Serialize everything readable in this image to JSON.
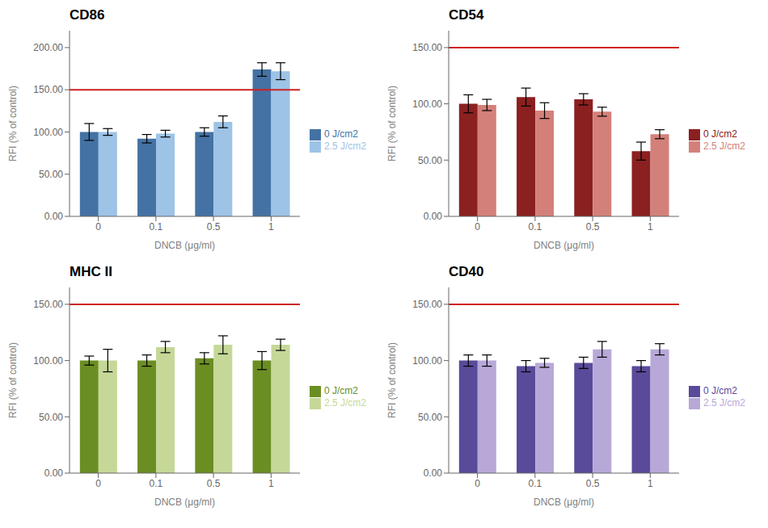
{
  "chart_data": [
    {
      "type": "bar",
      "title": "CD86",
      "xlabel": "DNCB (μg/ml)",
      "ylabel": "RFI (% of control)",
      "categories": [
        "0",
        "0.1",
        "0.5",
        "1"
      ],
      "series": [
        {
          "name": "0 J/cm2",
          "color": "#4472a4",
          "values": [
            100,
            92,
            100,
            174
          ],
          "errors": [
            10,
            5,
            5,
            8
          ]
        },
        {
          "name": "2.5 J/cm2",
          "color": "#9dc3e6",
          "values": [
            100,
            98,
            112,
            172
          ],
          "errors": [
            4,
            4,
            7,
            10
          ]
        }
      ],
      "ylim": [
        0,
        220
      ],
      "yticks": [
        {
          "value": 0,
          "label": "0.00"
        },
        {
          "value": 50,
          "label": "50.00"
        },
        {
          "value": 100,
          "label": "100.00"
        },
        {
          "value": 150,
          "label": "150.00"
        },
        {
          "value": 200,
          "label": "200.00"
        }
      ],
      "reference_lines": [
        {
          "value": 150,
          "color": "#cc2222"
        }
      ],
      "grid": false,
      "legend": "right"
    },
    {
      "type": "bar",
      "title": "CD54",
      "xlabel": "DNCB (μg/ml)",
      "ylabel": "RFI (% of control)",
      "categories": [
        "0",
        "0.1",
        "0.5",
        "1"
      ],
      "series": [
        {
          "name": "0 J/cm2",
          "color": "#8b2020",
          "values": [
            100,
            106,
            104,
            58
          ],
          "errors": [
            8,
            8,
            5,
            8
          ]
        },
        {
          "name": "2.5 J/cm2",
          "color": "#d4807a",
          "values": [
            99,
            94,
            93,
            73
          ],
          "errors": [
            5,
            7,
            4,
            4
          ]
        }
      ],
      "ylim": [
        0,
        165
      ],
      "yticks": [
        {
          "value": 0,
          "label": "0.00"
        },
        {
          "value": 50,
          "label": "50.00"
        },
        {
          "value": 100,
          "label": "100.00"
        },
        {
          "value": 150,
          "label": "150.00"
        }
      ],
      "reference_lines": [
        {
          "value": 150,
          "color": "#cc2222"
        }
      ],
      "grid": false,
      "legend": "right"
    },
    {
      "type": "bar",
      "title": "MHC II",
      "xlabel": "DNCB (μg/ml)",
      "ylabel": "RFI (% of control)",
      "categories": [
        "0",
        "0.1",
        "0.5",
        "1"
      ],
      "series": [
        {
          "name": "0 J/cm2",
          "color": "#6b8e23",
          "values": [
            100,
            100,
            102,
            100
          ],
          "errors": [
            4,
            5,
            5,
            8
          ]
        },
        {
          "name": "2.5 J/cm2",
          "color": "#c5d898",
          "values": [
            100,
            112,
            114,
            114
          ],
          "errors": [
            10,
            5,
            8,
            5
          ]
        }
      ],
      "ylim": [
        0,
        165
      ],
      "yticks": [
        {
          "value": 0,
          "label": "0.00"
        },
        {
          "value": 50,
          "label": "50.00"
        },
        {
          "value": 100,
          "label": "100.00"
        },
        {
          "value": 150,
          "label": "150.00"
        }
      ],
      "reference_lines": [
        {
          "value": 150,
          "color": "#cc2222"
        }
      ],
      "grid": false,
      "legend": "right"
    },
    {
      "type": "bar",
      "title": "CD40",
      "xlabel": "DNCB (μg/ml)",
      "ylabel": "RFI (% of control)",
      "categories": [
        "0",
        "0.1",
        "0.5",
        "1"
      ],
      "series": [
        {
          "name": "0 J/cm2",
          "color": "#5a4a9a",
          "values": [
            100,
            95,
            98,
            95
          ],
          "errors": [
            5,
            5,
            5,
            5
          ]
        },
        {
          "name": "2.5 J/cm2",
          "color": "#b8a8d8",
          "values": [
            100,
            98,
            110,
            110
          ],
          "errors": [
            5,
            4,
            7,
            5
          ]
        }
      ],
      "ylim": [
        0,
        165
      ],
      "yticks": [
        {
          "value": 0,
          "label": "0.00"
        },
        {
          "value": 50,
          "label": "50.00"
        },
        {
          "value": 100,
          "label": "100.00"
        },
        {
          "value": 150,
          "label": "150.00"
        }
      ],
      "reference_lines": [
        {
          "value": 150,
          "color": "#cc2222"
        }
      ],
      "grid": false,
      "legend": "right"
    }
  ]
}
